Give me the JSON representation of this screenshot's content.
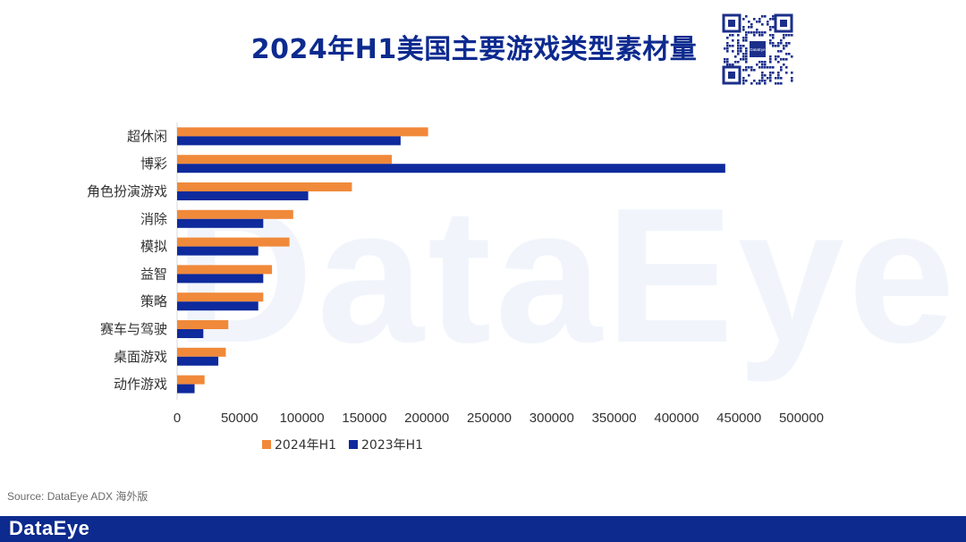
{
  "title": "2024年H1美国主要游戏类型素材量",
  "watermark": "DataEye",
  "source": "Source: DataEye ADX 海外版",
  "footer_logo": "DataEye",
  "qr_center_label": "DataEye",
  "colors": {
    "series_2024": "#f0893a",
    "series_2023": "#0e2a9c",
    "title": "#0d2a8f",
    "footer": "#0d2a8f"
  },
  "chart_data": {
    "type": "bar",
    "orientation": "horizontal",
    "categories": [
      "超休闲",
      "博彩",
      "角色扮演游戏",
      "消除",
      "模拟",
      "益智",
      "策略",
      "赛车与驾驶",
      "桌面游戏",
      "动作游戏"
    ],
    "series": [
      {
        "name": "2024年H1",
        "values": [
          201000,
          172000,
          140000,
          93000,
          90000,
          76000,
          69000,
          41000,
          39000,
          22000
        ]
      },
      {
        "name": "2023年H1",
        "values": [
          179000,
          439000,
          105000,
          69000,
          65000,
          69000,
          65000,
          21000,
          33000,
          14000
        ]
      }
    ],
    "xlim": [
      0,
      500000
    ],
    "xticks": [
      "0",
      "50000",
      "100000",
      "150000",
      "200000",
      "250000",
      "300000",
      "350000",
      "400000",
      "450000",
      "500000"
    ],
    "xlabel": "",
    "ylabel": "",
    "grid": false,
    "legend": "bottom"
  }
}
